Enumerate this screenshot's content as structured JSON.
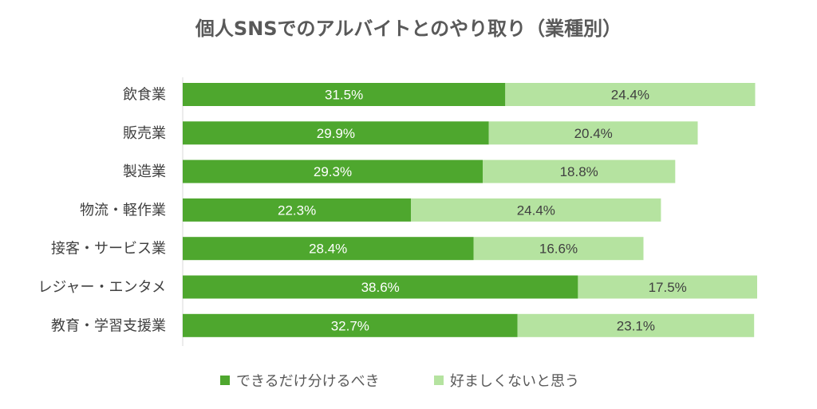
{
  "chart_data": {
    "type": "bar",
    "orientation": "horizontal",
    "stacked": true,
    "title": "個人SNSでのアルバイトとのやり取り（業種別）",
    "categories": [
      "飲食業",
      "販売業",
      "製造業",
      "物流・軽作業",
      "接客・サービス業",
      "レジャー・エンタメ",
      "教育・学習支援業"
    ],
    "series": [
      {
        "name": "できるだけ分けるべき",
        "color": "#4ea72e",
        "label_color": "#ffffff",
        "values": [
          31.5,
          29.9,
          29.3,
          22.3,
          28.4,
          38.6,
          32.7
        ],
        "labels": [
          "31.5%",
          "29.9%",
          "29.3%",
          "22.3%",
          "28.4%",
          "38.6%",
          "32.7%"
        ]
      },
      {
        "name": "好ましくないと思う",
        "color": "#b5e3a0",
        "label_color": "#404040",
        "values": [
          24.4,
          20.4,
          18.8,
          24.4,
          16.6,
          17.5,
          23.1
        ],
        "labels": [
          "24.4%",
          "20.4%",
          "18.8%",
          "24.4%",
          "16.6%",
          "17.5%",
          "23.1%"
        ]
      }
    ],
    "xlim": [
      0,
      56.1
    ],
    "grid": false,
    "legend": "bottom"
  }
}
